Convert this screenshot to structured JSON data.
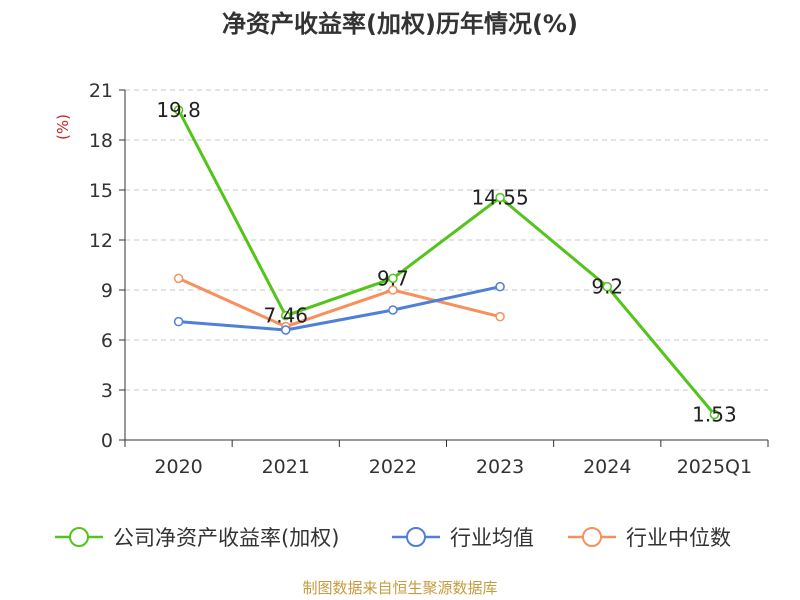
{
  "chart_data": {
    "type": "line",
    "title": "净资产收益率(加权)历年情况(%)",
    "ylabel": "(%)",
    "xlabel": "",
    "categories": [
      "2020",
      "2021",
      "2022",
      "2023",
      "2024",
      "2025Q1"
    ],
    "ylim": [
      0,
      21
    ],
    "yticks": [
      0,
      3,
      6,
      9,
      12,
      15,
      18,
      21
    ],
    "grid": true,
    "legend_position": "bottom",
    "series": [
      {
        "name": "公司净资产收益率(加权)",
        "color": "#52c41a",
        "values": [
          19.8,
          7.46,
          9.7,
          14.55,
          9.2,
          1.53
        ],
        "labels": [
          "19.8",
          "7.46",
          "9.7",
          "14.55",
          "9.2",
          "1.53"
        ]
      },
      {
        "name": "行业均值",
        "color": "#4f7fd9",
        "values": [
          7.1,
          6.6,
          7.8,
          9.2,
          null,
          null
        ]
      },
      {
        "name": "行业中位数",
        "color": "#f7905c",
        "values": [
          9.7,
          6.8,
          9.0,
          7.4,
          null,
          null
        ]
      }
    ]
  },
  "footer": "制图数据来自恒生聚源数据库"
}
